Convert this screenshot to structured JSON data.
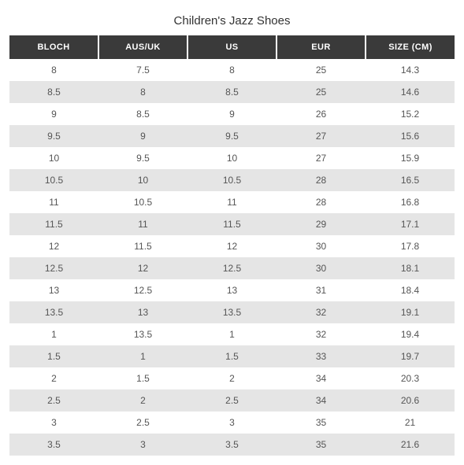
{
  "title": "Children's Jazz Shoes",
  "colors": {
    "header_bg": "#3a3a3a",
    "header_text": "#ffffff",
    "row_even_bg": "#e5e5e5",
    "row_odd_bg": "#ffffff",
    "cell_text": "#555555",
    "title_text": "#333333",
    "page_bg": "#ffffff"
  },
  "typography": {
    "title_fontsize": 15,
    "header_fontsize": 11,
    "cell_fontsize": 12,
    "font_family": "system sans-serif"
  },
  "table": {
    "type": "table",
    "columns": [
      "BLOCH",
      "AUS/UK",
      "US",
      "EUR",
      "SIZE (CM)"
    ],
    "column_widths_pct": [
      20,
      20,
      20,
      20,
      20
    ],
    "alignment": "center",
    "rows": [
      [
        "8",
        "7.5",
        "8",
        "25",
        "14.3"
      ],
      [
        "8.5",
        "8",
        "8.5",
        "25",
        "14.6"
      ],
      [
        "9",
        "8.5",
        "9",
        "26",
        "15.2"
      ],
      [
        "9.5",
        "9",
        "9.5",
        "27",
        "15.6"
      ],
      [
        "10",
        "9.5",
        "10",
        "27",
        "15.9"
      ],
      [
        "10.5",
        "10",
        "10.5",
        "28",
        "16.5"
      ],
      [
        "11",
        "10.5",
        "11",
        "28",
        "16.8"
      ],
      [
        "11.5",
        "11",
        "11.5",
        "29",
        "17.1"
      ],
      [
        "12",
        "11.5",
        "12",
        "30",
        "17.8"
      ],
      [
        "12.5",
        "12",
        "12.5",
        "30",
        "18.1"
      ],
      [
        "13",
        "12.5",
        "13",
        "31",
        "18.4"
      ],
      [
        "13.5",
        "13",
        "13.5",
        "32",
        "19.1"
      ],
      [
        "1",
        "13.5",
        "1",
        "32",
        "19.4"
      ],
      [
        "1.5",
        "1",
        "1.5",
        "33",
        "19.7"
      ],
      [
        "2",
        "1.5",
        "2",
        "34",
        "20.3"
      ],
      [
        "2.5",
        "2",
        "2.5",
        "34",
        "20.6"
      ],
      [
        "3",
        "2.5",
        "3",
        "35",
        "21"
      ],
      [
        "3.5",
        "3",
        "3.5",
        "35",
        "21.6"
      ]
    ]
  }
}
